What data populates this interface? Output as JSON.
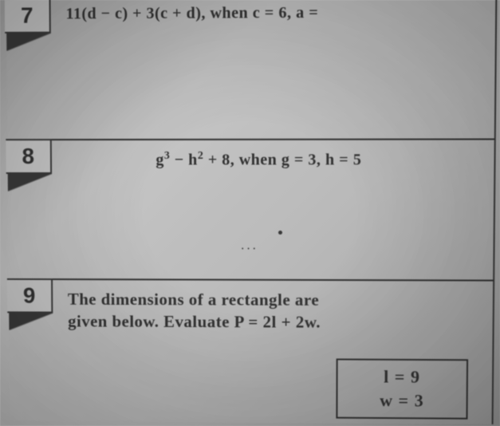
{
  "problems": {
    "p7": {
      "number": "7",
      "expression": "11(d − c) + 3(c + d), when c = 6, a ="
    },
    "p8": {
      "number": "8",
      "expression_html": "g³ − h² + 8, when g = 3, h = 5"
    },
    "p9": {
      "number": "9",
      "line1": "The dimensions of a rectangle are",
      "line2": "given below. Evaluate P = 2l + 2w.",
      "dim_l": "l = 9",
      "dim_w": "w = 3"
    }
  },
  "style": {
    "text_color": "#2a2a2a",
    "border_color": "#333333",
    "expression_fontsize": 20,
    "number_fontsize": 28
  }
}
